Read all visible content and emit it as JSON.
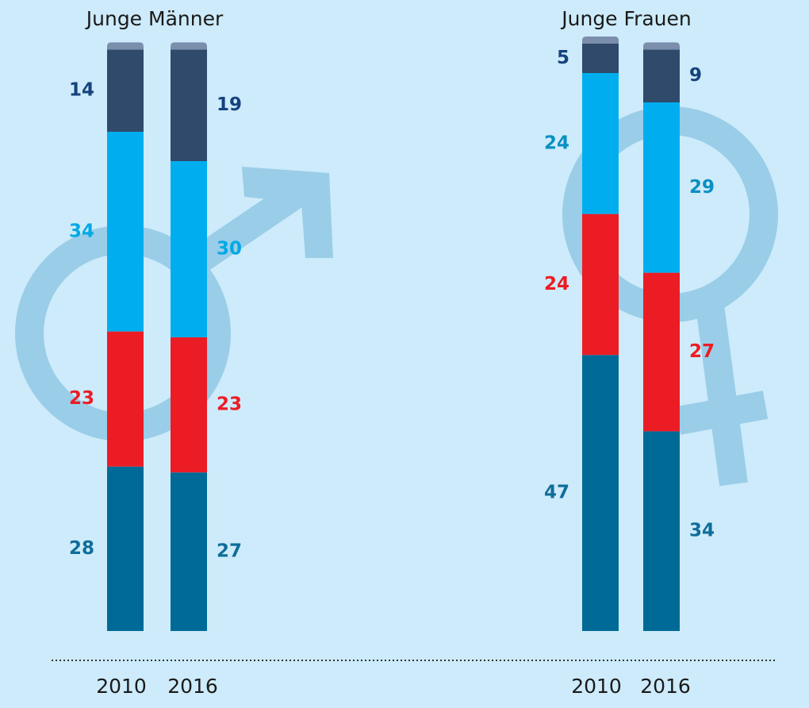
{
  "chart_data": [
    {
      "type": "stacked_bar",
      "title": "Junge Männer",
      "categories": [
        "2010",
        "2016"
      ],
      "ylim": [
        0,
        100
      ],
      "series": [
        {
          "color": "#006a96",
          "label_color": "#0f6d9a",
          "values": [
            28,
            27
          ]
        },
        {
          "color": "#ec1c24",
          "label_color": "#ec1c24",
          "values": [
            23,
            23
          ]
        },
        {
          "color": "#00aeef",
          "label_color": "#00a9e6",
          "values": [
            34,
            30
          ]
        },
        {
          "color": "#2f4a6b",
          "label_color": "#16427e",
          "values": [
            14,
            19
          ]
        }
      ]
    },
    {
      "type": "stacked_bar",
      "title": "Junge Frauen",
      "categories": [
        "2010",
        "2016"
      ],
      "ylim": [
        0,
        100
      ],
      "series": [
        {
          "color": "#006a96",
          "label_color": "#0f6d9a",
          "values": [
            47,
            34
          ]
        },
        {
          "color": "#ec1c24",
          "label_color": "#ec1c24",
          "values": [
            24,
            27
          ]
        },
        {
          "color": "#00aeef",
          "label_color": "#0a8fc2",
          "values": [
            24,
            29
          ]
        },
        {
          "color": "#2f4a6b",
          "label_color": "#16427e",
          "values": [
            5,
            9
          ]
        }
      ]
    }
  ]
}
